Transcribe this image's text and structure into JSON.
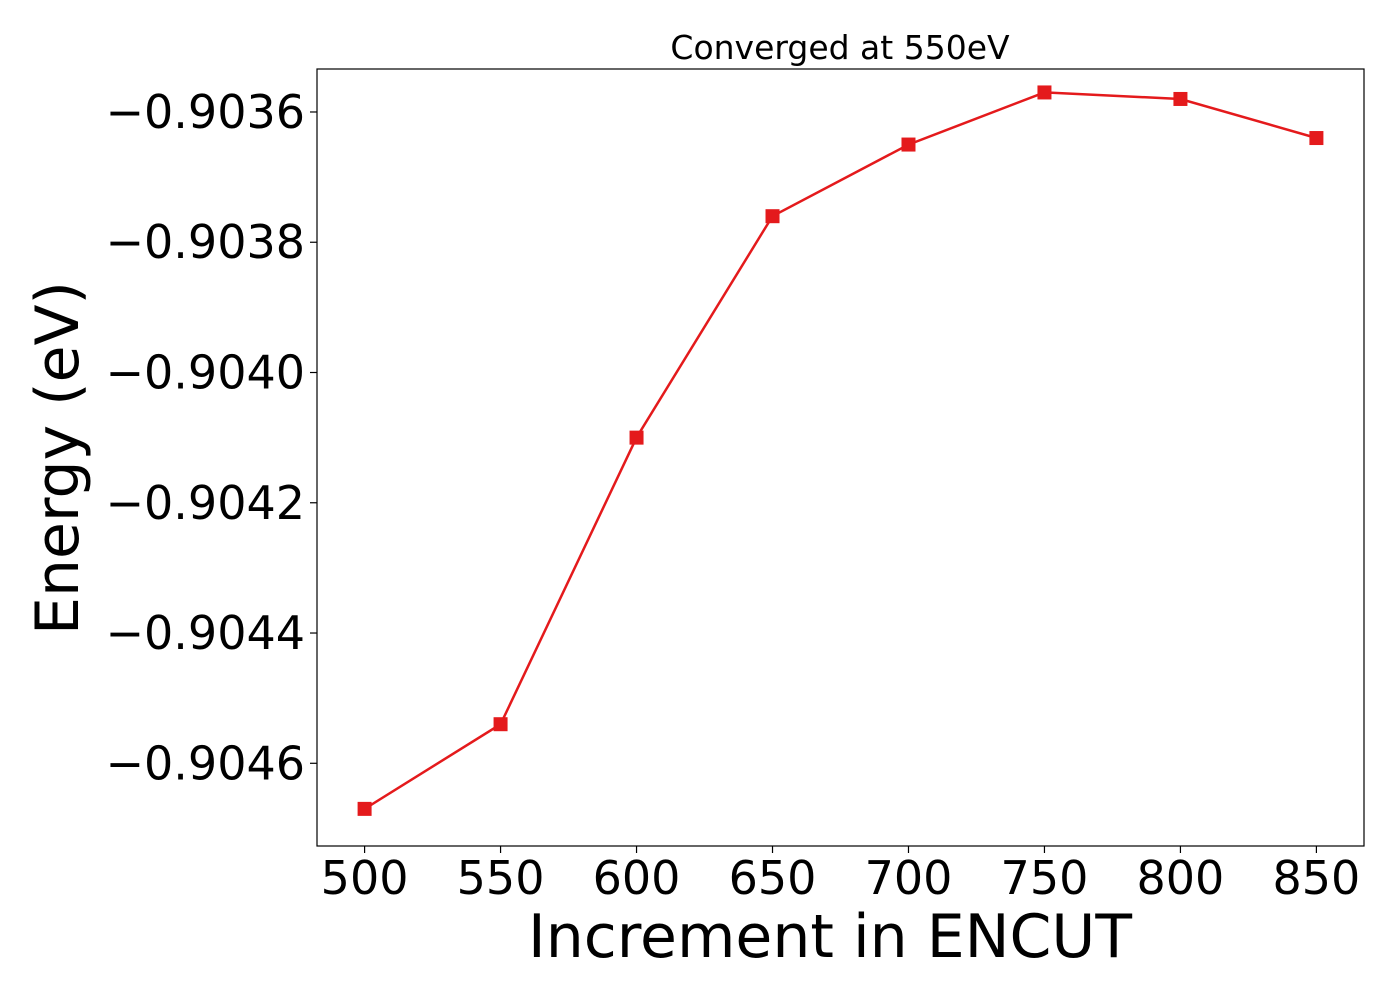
{
  "chart_data": {
    "type": "line",
    "title": "Converged at 550eV",
    "xlabel": "Increment in ENCUT",
    "ylabel": "Energy (eV)",
    "x": [
      500,
      550,
      600,
      650,
      700,
      750,
      800,
      850
    ],
    "series": [
      {
        "values": [
          -0.90467,
          -0.90454,
          -0.9041,
          -0.90376,
          -0.90365,
          -0.90357,
          -0.90358,
          -0.90364
        ],
        "color": "#e41a1c",
        "marker": "square"
      }
    ],
    "xticks": [
      500,
      550,
      600,
      650,
      700,
      750,
      800,
      850
    ],
    "xtick_labels": [
      "500",
      "550",
      "600",
      "650",
      "700",
      "750",
      "800",
      "850"
    ],
    "yticks": [
      -0.9046,
      -0.9044,
      -0.9042,
      -0.904,
      -0.9038,
      -0.9036
    ],
    "ytick_labels": [
      "−0.9046",
      "−0.9044",
      "−0.9042",
      "−0.9040",
      "−0.9038",
      "−0.9036"
    ],
    "xlim": [
      482.5,
      867.5
    ],
    "ylim": [
      -0.904727,
      -0.903534
    ],
    "grid": false,
    "legend": false
  }
}
